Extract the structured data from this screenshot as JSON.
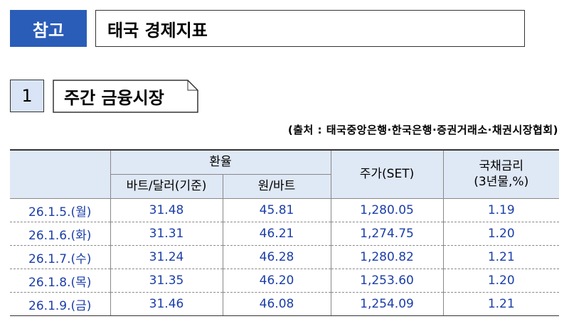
{
  "header": {
    "badge": "참고",
    "title": "태국 경제지표"
  },
  "section": {
    "number": "1",
    "title": "주간 금융시장"
  },
  "source": "(출처 : 태국중앙은행·한국은행·증권거래소·채권시장협회)",
  "table": {
    "columns": {
      "exchange_rate": "환율",
      "baht_dollar": "바트/달러(기준)",
      "won_baht": "원/바트",
      "stock": "주가(SET)",
      "bond": [
        "국채금리",
        "(3년물,%)"
      ]
    },
    "rows": [
      [
        "26.1.5.(월)",
        "31.48",
        "45.81",
        "1,280.05",
        "1.19"
      ],
      [
        "26.1.6.(화)",
        "31.31",
        "46.21",
        "1,274.75",
        "1.20"
      ],
      [
        "26.1.7.(수)",
        "31.24",
        "46.28",
        "1,280.82",
        "1.21"
      ],
      [
        "26.1.8.(목)",
        "31.35",
        "46.20",
        "1,253.60",
        "1.20"
      ],
      [
        "26.1.9.(금)",
        "31.46",
        "46.08",
        "1,254.09",
        "1.21"
      ]
    ]
  }
}
